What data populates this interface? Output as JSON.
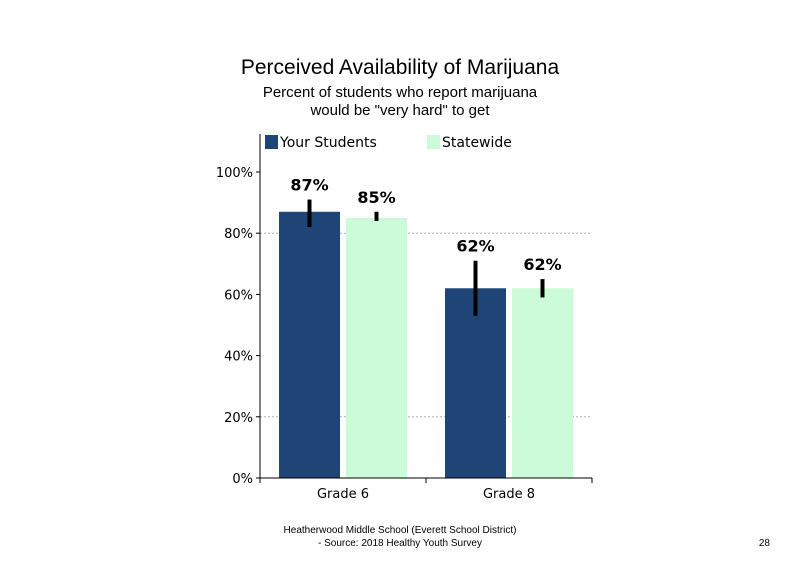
{
  "chart_data": {
    "type": "bar",
    "title": "Perceived Availability of Marijuana",
    "subtitle": [
      "Percent of students who report marijuana",
      "would be \"very hard\" to get"
    ],
    "categories": [
      "Grade 6",
      "Grade 8"
    ],
    "series": [
      {
        "name": "Your Students",
        "values": [
          87,
          62
        ],
        "labels": [
          "87%",
          "62%"
        ],
        "error_low": [
          82,
          53
        ],
        "error_high": [
          91,
          71
        ],
        "color": "#1F4577"
      },
      {
        "name": "Statewide",
        "values": [
          85,
          62
        ],
        "labels": [
          "85%",
          "62%"
        ],
        "error_low": [
          84,
          59
        ],
        "error_high": [
          87,
          65
        ],
        "color": "#CCFBDA"
      }
    ],
    "yticks": [
      "0%",
      "20%",
      "40%",
      "60%",
      "80%",
      "100%"
    ],
    "ylim": [
      0,
      110
    ],
    "grid": "dashed horizontal at 20%, 80%",
    "legend": "top"
  },
  "footer": {
    "line1": "Heatherwood Middle School (Everett School District)",
    "line2": "- Source: 2018 Healthy  Youth Survey",
    "page_number": "28"
  }
}
